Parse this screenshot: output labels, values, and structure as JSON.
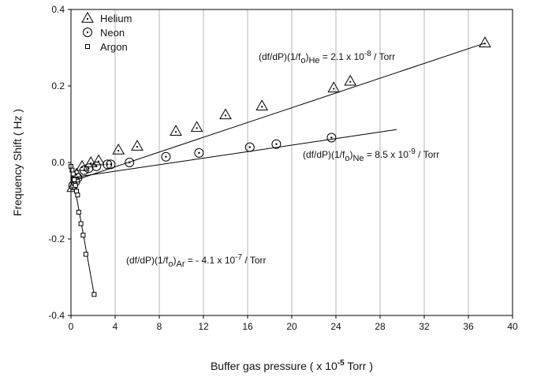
{
  "chart_data": {
    "type": "scatter",
    "xlabel": {
      "pre": "Buffer gas pressure ( x 10",
      "sup": "-5",
      "post": " Torr )"
    },
    "ylabel": "Frequency Shift ( Hz )",
    "xlim": [
      0,
      40
    ],
    "ylim": [
      -0.4,
      0.4
    ],
    "xticks": [
      0,
      4,
      8,
      12,
      16,
      20,
      24,
      28,
      32,
      36,
      40
    ],
    "yticks": [
      -0.4,
      -0.2,
      0.0,
      0.2,
      0.4
    ],
    "xtick_labels": [
      "0",
      "4",
      "8",
      "12",
      "16",
      "20",
      "24",
      "28",
      "32",
      "36",
      "40"
    ],
    "ytick_labels": [
      "-0.4",
      "-0.2",
      "0.0",
      "0.2",
      "0.4"
    ],
    "grid": "vertical",
    "legend_position": "top-left",
    "series": [
      {
        "name": "Helium",
        "marker": "triangle",
        "x": [
          0.15,
          0.5,
          1.0,
          1.8,
          2.5,
          4.3,
          6.0,
          9.5,
          11.4,
          14.0,
          17.3,
          23.8,
          25.3,
          37.5
        ],
        "y": [
          -0.065,
          -0.03,
          -0.01,
          0.0,
          0.005,
          0.033,
          0.043,
          0.082,
          0.092,
          0.125,
          0.148,
          0.195,
          0.213,
          0.313
        ],
        "fit": {
          "x": [
            0,
            37.5
          ],
          "y": [
            -0.05,
            0.312
          ]
        }
      },
      {
        "name": "Neon",
        "marker": "circle-dot",
        "x": [
          0.2,
          0.4,
          0.6,
          1.2,
          1.6,
          2.3,
          3.3,
          3.6,
          5.3,
          8.6,
          11.6,
          16.2,
          18.6,
          23.6
        ],
        "y": [
          -0.06,
          -0.05,
          -0.04,
          -0.02,
          -0.015,
          -0.01,
          -0.005,
          -0.005,
          0.0,
          0.015,
          0.025,
          0.04,
          0.048,
          0.065
        ],
        "fit": {
          "x": [
            0,
            29.5
          ],
          "y": [
            -0.04,
            0.086
          ]
        }
      },
      {
        "name": "Argon",
        "marker": "square",
        "x": [
          0.0,
          0.1,
          0.2,
          0.3,
          0.4,
          0.5,
          0.6,
          0.7,
          0.9,
          1.1,
          1.35,
          2.1
        ],
        "y": [
          -0.01,
          -0.02,
          -0.03,
          -0.045,
          -0.06,
          -0.075,
          -0.085,
          -0.13,
          -0.16,
          -0.19,
          -0.24,
          -0.345
        ],
        "fit": {
          "x": [
            0.0,
            2.1
          ],
          "y": [
            -0.01,
            -0.345
          ]
        }
      }
    ],
    "annotations": [
      {
        "id": "he",
        "parts": [
          [
            "n",
            "(df/dP)(1/f"
          ],
          [
            "sub",
            "o"
          ],
          [
            "n",
            ")"
          ],
          [
            "sub",
            "He"
          ],
          [
            "n",
            " = 2.1 x 10"
          ],
          [
            "sup",
            "-8"
          ],
          [
            "n",
            " / Torr"
          ]
        ]
      },
      {
        "id": "ne",
        "parts": [
          [
            "n",
            "(df/dP)(1/f"
          ],
          [
            "sub",
            "o"
          ],
          [
            "n",
            ")"
          ],
          [
            "sub",
            "Ne"
          ],
          [
            "n",
            " = 8.5 x 10"
          ],
          [
            "sup",
            "-9"
          ],
          [
            "n",
            " / Torr"
          ]
        ]
      },
      {
        "id": "ar",
        "parts": [
          [
            "n",
            "(df/dP)(1/f"
          ],
          [
            "sub",
            "o"
          ],
          [
            "n",
            ")"
          ],
          [
            "sub",
            "Ar"
          ],
          [
            "n",
            " = - 4.1 x 10"
          ],
          [
            "sup",
            "-7"
          ],
          [
            "n",
            " / Torr"
          ]
        ]
      }
    ]
  }
}
